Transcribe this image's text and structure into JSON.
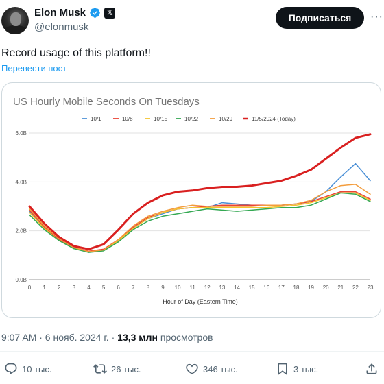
{
  "author": {
    "name": "Elon Musk",
    "handle": "@elonmusk",
    "x_badge": "𝕏"
  },
  "subscribe_label": "Подписаться",
  "more_label": "···",
  "tweet": {
    "text": "Record usage of this platform!!",
    "translate_label": "Перевести пост"
  },
  "meta": {
    "datetime": "9:07 AM · 6 нояб. 2024 г. · ",
    "views_count": "13,3 млн",
    "views_label": " просмотров"
  },
  "actions": {
    "replies": "10 тыс.",
    "reposts": "26 тыс.",
    "likes": "346 тыс.",
    "bookmarks": "3 тыс."
  },
  "colors": {
    "accent": "#1d9bf0",
    "text": "#0f1419",
    "muted": "#536471"
  },
  "chart_data": {
    "type": "line",
    "title": "US Hourly Mobile Seconds On Tuesdays",
    "xlabel": "Hour of Day (Eastern Time)",
    "ylabel": "",
    "x": [
      0,
      1,
      2,
      3,
      4,
      5,
      6,
      7,
      8,
      9,
      10,
      11,
      12,
      13,
      14,
      15,
      16,
      17,
      18,
      19,
      20,
      21,
      22,
      23
    ],
    "ylim": [
      0,
      6
    ],
    "yticks": [
      "0.0B",
      "2.0B",
      "4.0B",
      "6.0B"
    ],
    "legend_position": "top",
    "grid": true,
    "series": [
      {
        "name": "10/1",
        "color": "#4a8fd6",
        "width": 1.5,
        "values": [
          2.8,
          2.1,
          1.6,
          1.3,
          1.15,
          1.2,
          1.6,
          2.1,
          2.5,
          2.7,
          2.9,
          2.95,
          2.95,
          3.15,
          3.1,
          3.05,
          3.05,
          3.05,
          3.1,
          3.2,
          3.6,
          4.2,
          4.75,
          4.05
        ]
      },
      {
        "name": "10/8",
        "color": "#ea4335",
        "width": 1.5,
        "values": [
          2.85,
          2.15,
          1.65,
          1.32,
          1.17,
          1.25,
          1.65,
          2.15,
          2.55,
          2.75,
          2.9,
          2.95,
          3.0,
          3.05,
          3.05,
          3.05,
          3.05,
          3.05,
          3.1,
          3.2,
          3.4,
          3.6,
          3.6,
          3.3
        ]
      },
      {
        "name": "10/15",
        "color": "#f4c430",
        "width": 1.5,
        "values": [
          2.75,
          2.1,
          1.6,
          1.28,
          1.13,
          1.2,
          1.6,
          2.1,
          2.5,
          2.75,
          2.9,
          2.95,
          2.95,
          2.95,
          2.95,
          2.95,
          2.95,
          3.0,
          3.05,
          3.15,
          3.35,
          3.55,
          3.55,
          3.25
        ]
      },
      {
        "name": "10/22",
        "color": "#34a853",
        "width": 1.5,
        "values": [
          2.65,
          2.05,
          1.6,
          1.27,
          1.12,
          1.18,
          1.55,
          2.05,
          2.4,
          2.6,
          2.7,
          2.8,
          2.9,
          2.85,
          2.8,
          2.85,
          2.9,
          2.95,
          2.95,
          3.05,
          3.3,
          3.55,
          3.5,
          3.2
        ]
      },
      {
        "name": "10/29",
        "color": "#f39c3c",
        "width": 1.5,
        "values": [
          2.9,
          2.2,
          1.68,
          1.32,
          1.15,
          1.22,
          1.65,
          2.2,
          2.6,
          2.8,
          2.95,
          3.05,
          3.0,
          3.0,
          3.0,
          3.0,
          3.05,
          3.05,
          3.1,
          3.25,
          3.6,
          3.85,
          3.9,
          3.5
        ]
      },
      {
        "name": "11/5/2024 (Today)",
        "color": "#d92020",
        "width": 3,
        "values": [
          3.0,
          2.3,
          1.75,
          1.38,
          1.25,
          1.45,
          2.05,
          2.7,
          3.15,
          3.45,
          3.6,
          3.65,
          3.75,
          3.8,
          3.8,
          3.85,
          3.95,
          4.05,
          4.25,
          4.5,
          4.95,
          5.4,
          5.8,
          5.95
        ]
      }
    ]
  }
}
